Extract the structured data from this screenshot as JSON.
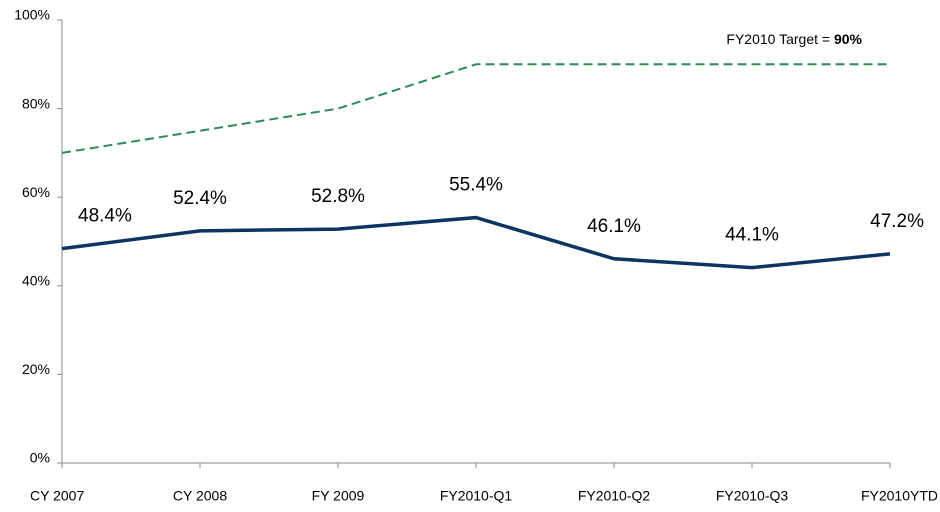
{
  "chart_data": {
    "type": "line",
    "categories": [
      "CY 2007",
      "CY 2008",
      "FY 2009",
      "FY2010-Q1",
      "FY2010-Q2",
      "FY2010-Q3",
      "FY2010YTD"
    ],
    "series": [
      {
        "color": "#0c3563",
        "values": [
          48.4,
          52.4,
          52.8,
          55.4,
          46.1,
          44.1,
          47.2
        ],
        "value_labels": [
          "48.4%",
          "52.4%",
          "52.8%",
          "55.4%",
          "46.1%",
          "44.1%",
          "47.2%"
        ]
      },
      {
        "color": "#2e8b57",
        "dashed": true,
        "values": [
          70,
          75,
          80,
          90,
          90,
          90,
          90
        ]
      }
    ],
    "annotation": {
      "text": "FY2010 Target = ",
      "emphasis": "90%"
    },
    "ylim": [
      0,
      100
    ],
    "yticks": [
      {
        "value": 0,
        "label": "0%"
      },
      {
        "value": 20,
        "label": "20%"
      },
      {
        "value": 40,
        "label": "40%"
      },
      {
        "value": 60,
        "label": "60%"
      },
      {
        "value": 80,
        "label": "80%"
      },
      {
        "value": 100,
        "label": "100%"
      }
    ],
    "grid": false
  }
}
